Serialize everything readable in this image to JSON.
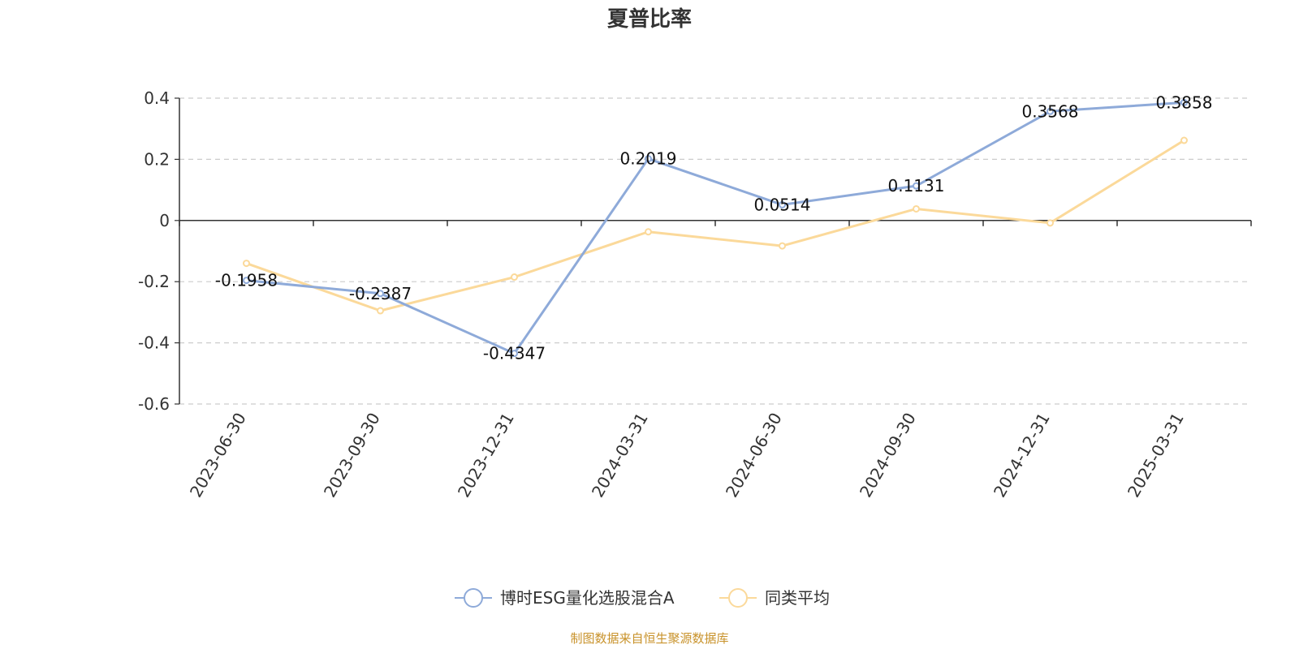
{
  "chart_data": {
    "type": "line",
    "title": "夏普比率",
    "categories": [
      "2023-06-30",
      "2023-09-30",
      "2023-12-31",
      "2024-03-31",
      "2024-06-30",
      "2024-09-30",
      "2024-12-31",
      "2025-03-31"
    ],
    "ylim": [
      -0.6,
      0.4
    ],
    "yticks": [
      0.4,
      0.2,
      0,
      -0.2,
      -0.4,
      -0.6
    ],
    "ytick_labels": [
      "0.4",
      "0.2",
      "0",
      "-0.2",
      "-0.4",
      "-0.6"
    ],
    "grid": true,
    "legend_position": "bottom",
    "series": [
      {
        "name": "博时ESG量化选股混合A",
        "color": "#8eaad9",
        "values": [
          -0.1958,
          -0.2387,
          -0.4347,
          0.2019,
          0.0514,
          0.1131,
          0.3568,
          0.3858
        ],
        "labels": [
          "-0.1958",
          "-0.2387",
          "-0.4347",
          "0.2019",
          "0.0514",
          "0.1131",
          "0.3568",
          "0.3858"
        ]
      },
      {
        "name": "同类平均",
        "color": "#fbd99a",
        "values": [
          -0.14,
          -0.295,
          -0.185,
          -0.037,
          -0.083,
          0.038,
          -0.008,
          0.262
        ]
      }
    ],
    "source": "制图数据来自恒生聚源数据库"
  }
}
